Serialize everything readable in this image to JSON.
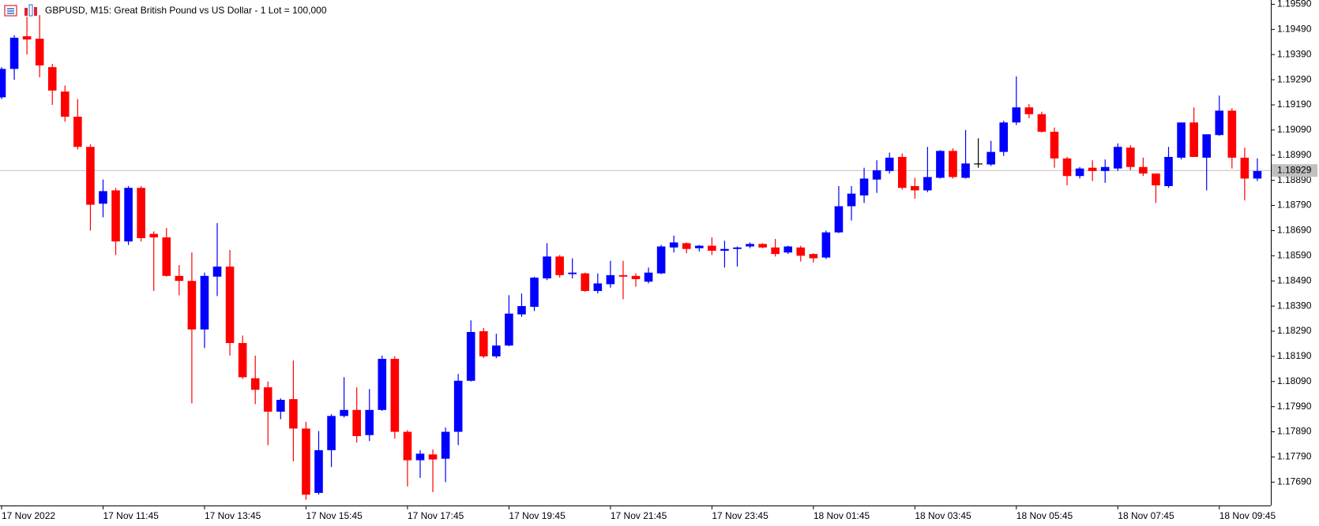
{
  "chart_data": {
    "type": "candlestick",
    "title": "GBPUSD, M15:  Great British Pound vs US Dollar - 1 Lot = 100,000",
    "categories": [
      "17 Nov 2022",
      null,
      null,
      null,
      null,
      null,
      null,
      null,
      "17 Nov 11:45",
      null,
      null,
      null,
      null,
      null,
      null,
      null,
      "17 Nov 13:45",
      null,
      null,
      null,
      null,
      null,
      null,
      null,
      "17 Nov 15:45",
      null,
      null,
      null,
      null,
      null,
      null,
      null,
      "17 Nov 17:45",
      null,
      null,
      null,
      null,
      null,
      null,
      null,
      "17 Nov 19:45",
      null,
      null,
      null,
      null,
      null,
      null,
      null,
      "17 Nov 21:45",
      null,
      null,
      null,
      null,
      null,
      null,
      null,
      "17 Nov 23:45",
      null,
      null,
      null,
      null,
      null,
      null,
      null,
      "18 Nov 01:45",
      null,
      null,
      null,
      null,
      null,
      null,
      null,
      "18 Nov 03:45",
      null,
      null,
      null,
      null,
      null,
      null,
      null,
      "18 Nov 05:45",
      null,
      null,
      null,
      null,
      null,
      null,
      null,
      "18 Nov 07:45",
      null,
      null,
      null,
      null,
      null,
      null,
      null,
      "18 Nov 09:45",
      null,
      null,
      null
    ],
    "open": [
      1.1922,
      1.19333,
      1.19463,
      1.19453,
      1.1934,
      1.19243,
      1.19143,
      1.19023,
      1.18797,
      1.1885,
      1.18647,
      1.1886,
      1.18677,
      1.18663,
      1.1851,
      1.1849,
      1.18297,
      1.18507,
      1.18547,
      1.18243,
      1.18103,
      1.18067,
      1.1797,
      1.1802,
      1.17903,
      1.17647,
      1.17817,
      1.17953,
      1.17977,
      1.17877,
      1.17977,
      1.1818,
      1.1789,
      1.17777,
      1.178,
      1.17783,
      1.1789,
      1.18093,
      1.1829,
      1.1819,
      1.18233,
      1.18357,
      1.18387,
      1.185,
      1.18587,
      1.18517,
      1.1852,
      1.1845,
      1.18477,
      1.18513,
      1.1851,
      1.18487,
      1.1852,
      1.18623,
      1.1864,
      1.1862,
      1.1863,
      1.1861,
      1.18617,
      1.18627,
      1.18637,
      1.18623,
      1.18603,
      1.18623,
      1.18597,
      1.18583,
      1.18683,
      1.18787,
      1.1883,
      1.18893,
      1.18927,
      1.18983,
      1.18867,
      1.1885,
      1.189,
      1.19007,
      1.189,
      1.18957,
      1.18953,
      1.19003,
      1.1912,
      1.1918,
      1.19153,
      1.19083,
      1.18977,
      1.18907,
      1.1894,
      1.18927,
      1.18937,
      1.1902,
      1.18943,
      1.18917,
      1.18867,
      1.1898,
      1.1912,
      1.1898,
      1.1907,
      1.19167,
      1.1898,
      1.18897
    ],
    "high": [
      1.1934,
      1.19467,
      1.1954,
      1.19547,
      1.19353,
      1.19267,
      1.19213,
      1.19033,
      1.18893,
      1.1886,
      1.18867,
      1.18867,
      1.18687,
      1.187,
      1.18553,
      1.18603,
      1.18523,
      1.1872,
      1.18613,
      1.18273,
      1.18193,
      1.1809,
      1.18023,
      1.18173,
      1.1793,
      1.17893,
      1.1796,
      1.18107,
      1.18067,
      1.1806,
      1.18193,
      1.1819,
      1.17897,
      1.17817,
      1.1782,
      1.17907,
      1.1812,
      1.18333,
      1.18303,
      1.1828,
      1.18433,
      1.1844,
      1.18507,
      1.1864,
      1.18593,
      1.1858,
      1.18523,
      1.1852,
      1.1857,
      1.1857,
      1.1852,
      1.18543,
      1.18633,
      1.1867,
      1.18643,
      1.18633,
      1.18663,
      1.1865,
      1.18627,
      1.18643,
      1.1864,
      1.18657,
      1.1863,
      1.1863,
      1.186,
      1.1869,
      1.18867,
      1.18867,
      1.1894,
      1.1897,
      1.19,
      1.18997,
      1.189,
      1.19023,
      1.1901,
      1.19017,
      1.1909,
      1.19057,
      1.19047,
      1.19127,
      1.19303,
      1.19193,
      1.19163,
      1.191,
      1.18983,
      1.18943,
      1.1897,
      1.18973,
      1.19037,
      1.1903,
      1.1898,
      1.18917,
      1.19023,
      1.1912,
      1.1918,
      1.19073,
      1.19227,
      1.19177,
      1.1902,
      1.18977
    ],
    "low": [
      1.19213,
      1.1929,
      1.1939,
      1.193,
      1.1919,
      1.19123,
      1.19013,
      1.1869,
      1.18743,
      1.18593,
      1.18633,
      1.18647,
      1.1845,
      1.18507,
      1.18433,
      1.18003,
      1.18223,
      1.1843,
      1.18193,
      1.181,
      1.18,
      1.17837,
      1.1794,
      1.17773,
      1.1762,
      1.1764,
      1.1775,
      1.17947,
      1.17847,
      1.17853,
      1.17973,
      1.17863,
      1.17673,
      1.17707,
      1.1765,
      1.1769,
      1.17837,
      1.1809,
      1.18183,
      1.18183,
      1.1823,
      1.18347,
      1.1837,
      1.18493,
      1.18503,
      1.185,
      1.18447,
      1.1844,
      1.18463,
      1.18417,
      1.18467,
      1.1848,
      1.18517,
      1.18603,
      1.186,
      1.18607,
      1.18593,
      1.18543,
      1.18547,
      1.1862,
      1.1862,
      1.18587,
      1.18597,
      1.18567,
      1.18563,
      1.18577,
      1.1868,
      1.1873,
      1.188,
      1.1884,
      1.18917,
      1.18853,
      1.18817,
      1.18843,
      1.18897,
      1.18897,
      1.18897,
      1.1894,
      1.18947,
      1.18987,
      1.1911,
      1.19137,
      1.1908,
      1.1894,
      1.1887,
      1.18897,
      1.18887,
      1.1888,
      1.18927,
      1.1893,
      1.18907,
      1.188,
      1.1886,
      1.18973,
      1.18983,
      1.1885,
      1.19067,
      1.18937,
      1.1881,
      1.18887
    ],
    "close": [
      1.19333,
      1.19457,
      1.1945,
      1.19347,
      1.19247,
      1.19143,
      1.19023,
      1.18793,
      1.18847,
      1.18647,
      1.1886,
      1.1866,
      1.18663,
      1.1851,
      1.1849,
      1.18297,
      1.1851,
      1.18547,
      1.18243,
      1.18107,
      1.18057,
      1.1797,
      1.18017,
      1.17903,
      1.1764,
      1.17817,
      1.17953,
      1.17977,
      1.17873,
      1.17977,
      1.1818,
      1.1789,
      1.17777,
      1.17803,
      1.1778,
      1.1789,
      1.18093,
      1.18287,
      1.1819,
      1.18233,
      1.1836,
      1.1839,
      1.18503,
      1.18587,
      1.18513,
      1.18523,
      1.1845,
      1.1848,
      1.18513,
      1.18507,
      1.18497,
      1.18523,
      1.18627,
      1.18643,
      1.18617,
      1.1863,
      1.1861,
      1.18617,
      1.18623,
      1.18637,
      1.18623,
      1.18597,
      1.18627,
      1.1859,
      1.1858,
      1.18683,
      1.18787,
      1.18837,
      1.18897,
      1.1893,
      1.1898,
      1.1886,
      1.1885,
      1.18903,
      1.19007,
      1.18903,
      1.18957,
      1.18957,
      1.19003,
      1.1912,
      1.1918,
      1.19153,
      1.19083,
      1.18977,
      1.18907,
      1.18937,
      1.18927,
      1.18943,
      1.19023,
      1.18943,
      1.18917,
      1.1887,
      1.18983,
      1.1912,
      1.18983,
      1.19073,
      1.19167,
      1.1898,
      1.18897,
      1.18927
    ],
    "colors": {
      "up": "#0000ff",
      "down": "#ff0000",
      "neutral": "#000000"
    },
    "current_price": 1.18929,
    "ylim": [
      1.17597,
      1.19607
    ],
    "yticks": [
      {
        "value": 1.1959,
        "label": "1.19590"
      },
      {
        "value": 1.1949,
        "label": "1.19490"
      },
      {
        "value": 1.1939,
        "label": "1.19390"
      },
      {
        "value": 1.1929,
        "label": "1.19290"
      },
      {
        "value": 1.1919,
        "label": "1.19190"
      },
      {
        "value": 1.1909,
        "label": "1.19090"
      },
      {
        "value": 1.1899,
        "label": "1.18990"
      },
      {
        "value": 1.1889,
        "label": "1.18890"
      },
      {
        "value": 1.1879,
        "label": "1.18790"
      },
      {
        "value": 1.1869,
        "label": "1.18690"
      },
      {
        "value": 1.1859,
        "label": "1.18590"
      },
      {
        "value": 1.1849,
        "label": "1.18490"
      },
      {
        "value": 1.1839,
        "label": "1.18390"
      },
      {
        "value": 1.1829,
        "label": "1.18290"
      },
      {
        "value": 1.1819,
        "label": "1.18190"
      },
      {
        "value": 1.1809,
        "label": "1.18090"
      },
      {
        "value": 1.1799,
        "label": "1.17990"
      },
      {
        "value": 1.1789,
        "label": "1.17890"
      },
      {
        "value": 1.1779,
        "label": "1.17790"
      },
      {
        "value": 1.1769,
        "label": "1.17690"
      }
    ],
    "grid": false
  }
}
